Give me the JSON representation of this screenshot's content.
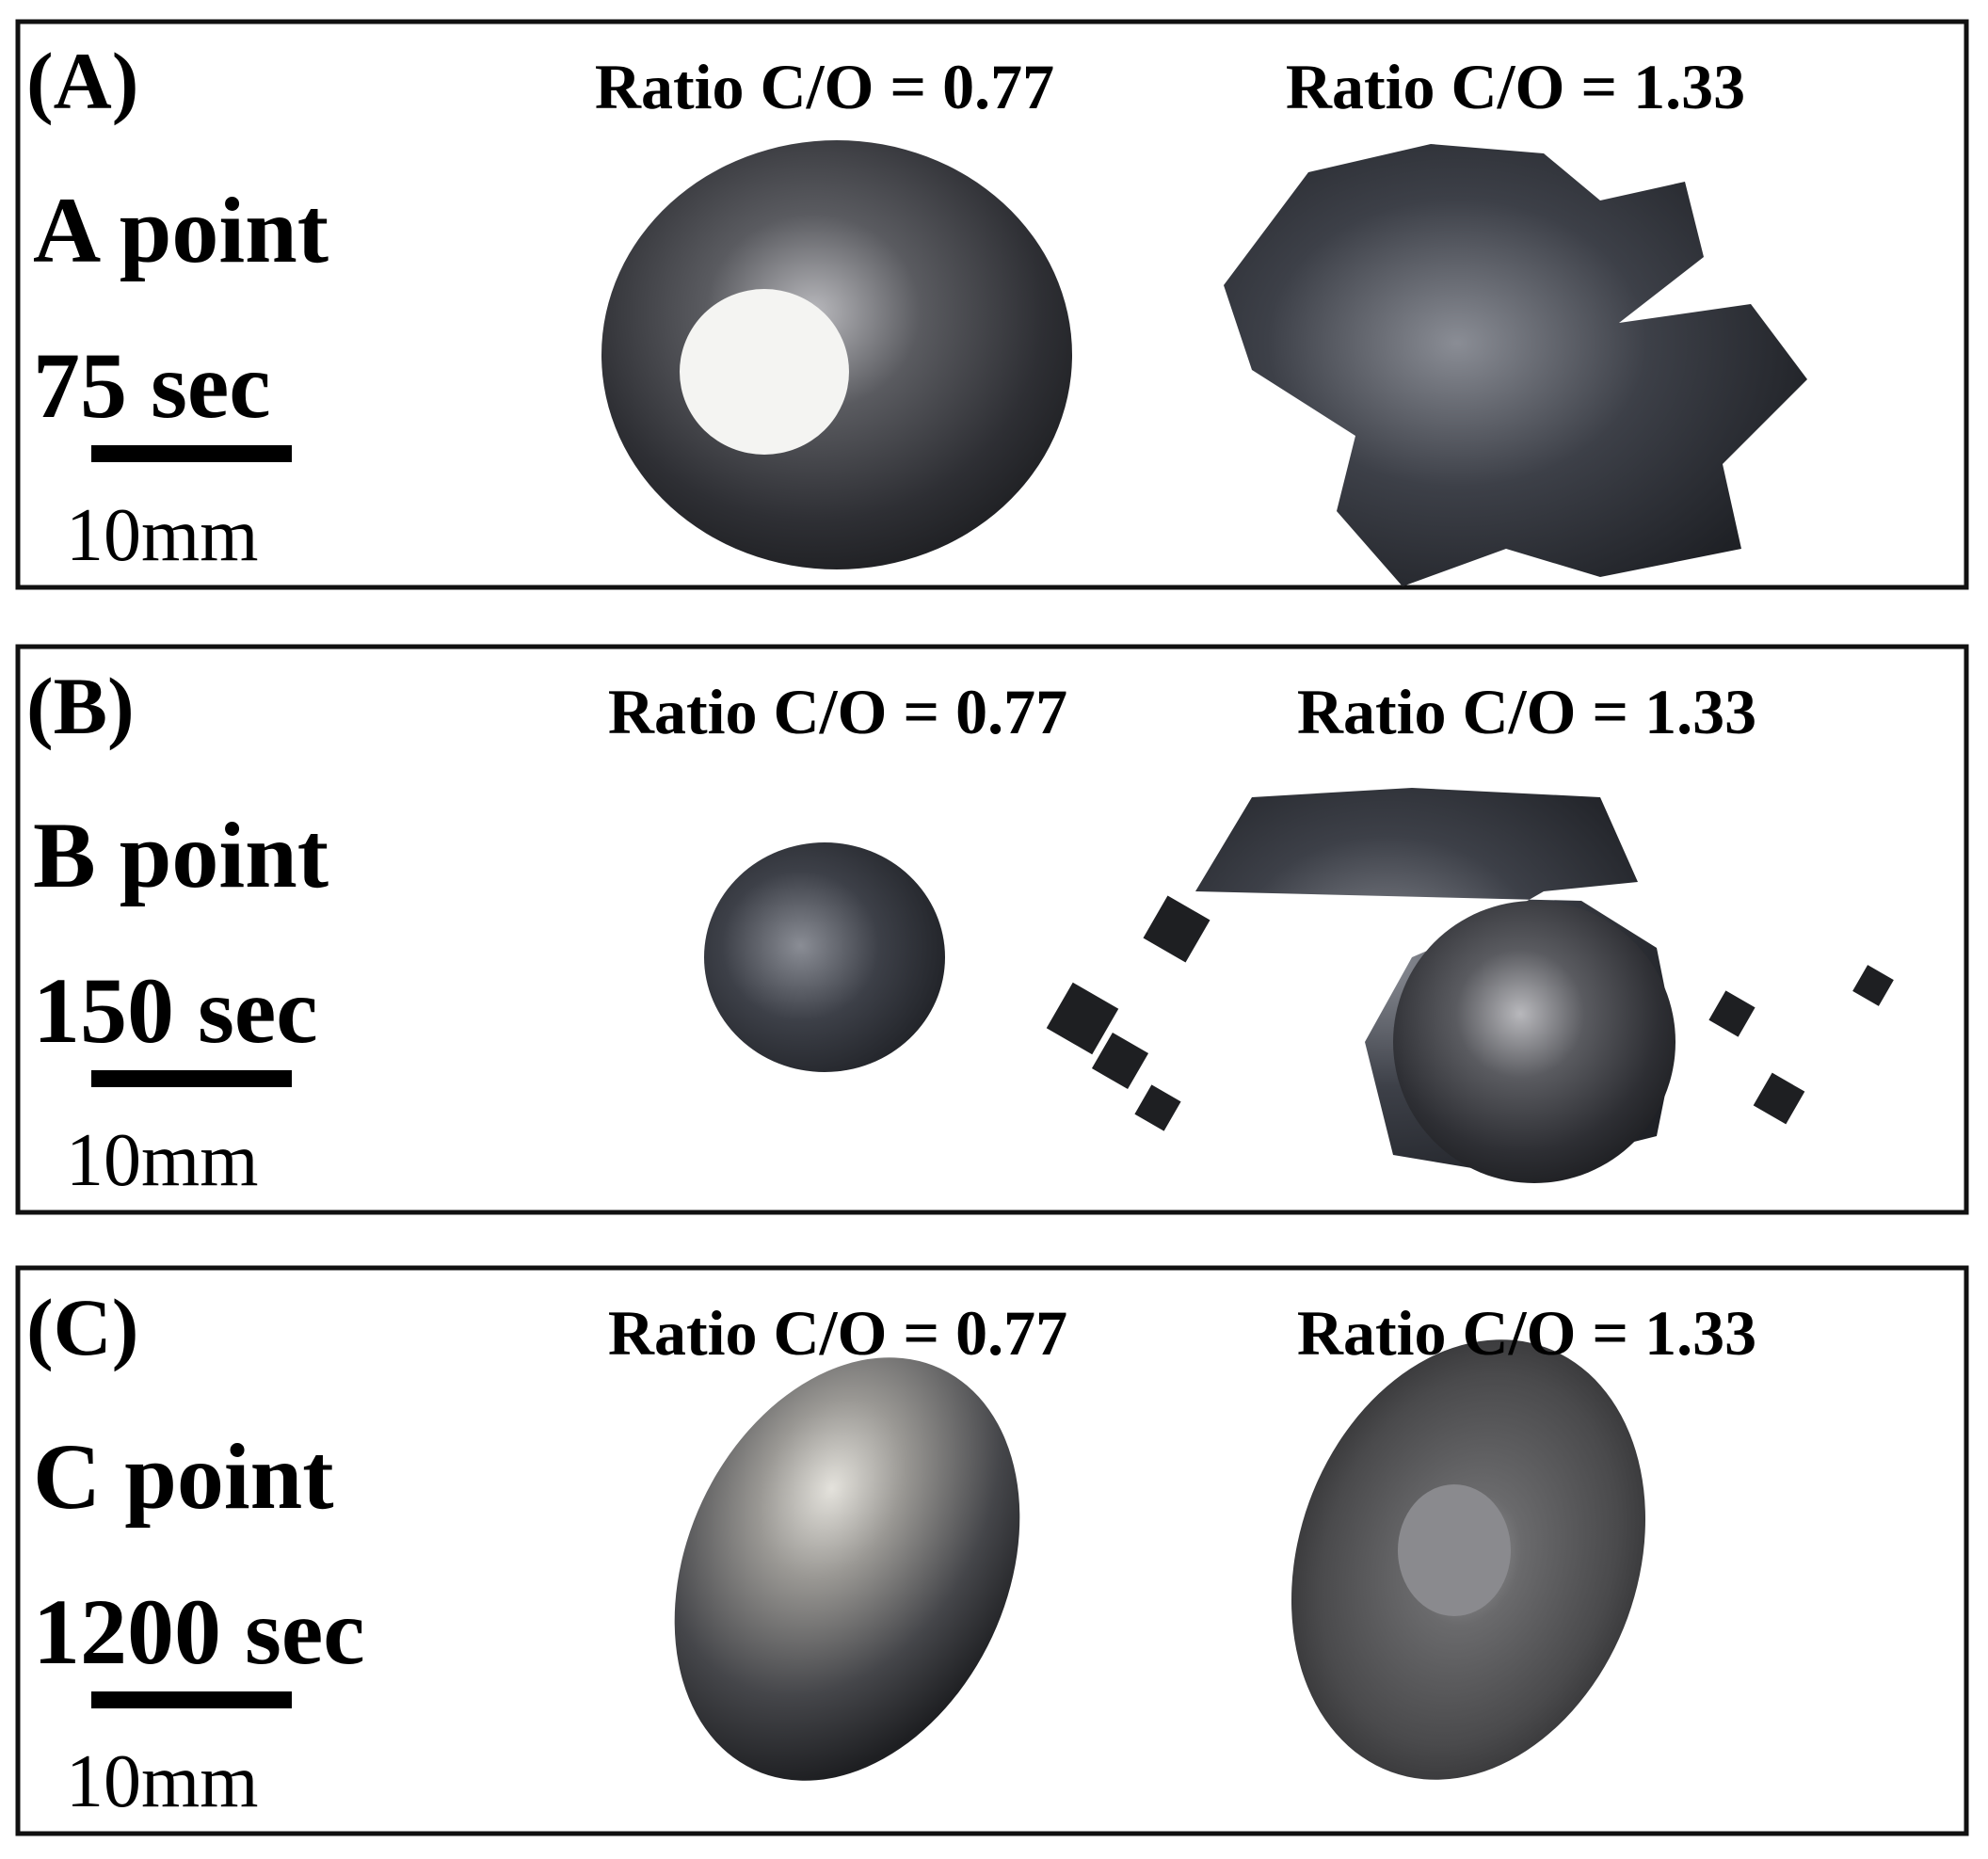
{
  "panels": [
    {
      "label": "(A)",
      "point": "A point",
      "time": "75 sec",
      "scale": "10mm",
      "captions": [
        "Ratio C/O = 0.77",
        "Ratio C/O = 1.33"
      ]
    },
    {
      "label": "(B)",
      "point": "B point",
      "time": "150 sec",
      "scale": "10mm",
      "captions": [
        "Ratio C/O = 0.77",
        "Ratio C/O = 1.33"
      ]
    },
    {
      "label": "(C)",
      "point": "C point",
      "time": "1200 sec",
      "scale": "10mm",
      "captions": [
        "Ratio C/O = 0.77",
        "Ratio C/O = 1.33"
      ]
    }
  ]
}
